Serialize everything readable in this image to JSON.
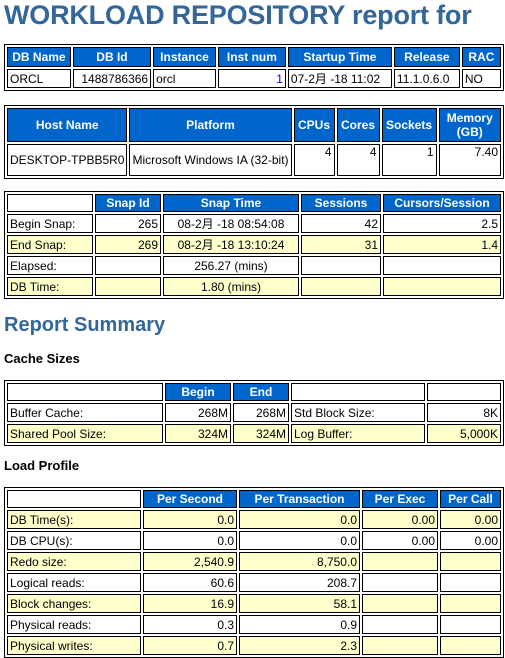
{
  "page_title": "WORKLOAD REPOSITORY report for",
  "db_info": {
    "headers": [
      "DB Name",
      "DB Id",
      "Instance",
      "Inst num",
      "Startup Time",
      "Release",
      "RAC"
    ],
    "row": [
      "ORCL",
      "1488786366",
      "orcl",
      "1",
      "07-2月 -18 11:02",
      "11.1.0.6.0",
      "NO"
    ]
  },
  "host_info": {
    "headers": [
      "Host Name",
      "Platform",
      "CPUs",
      "Cores",
      "Sockets",
      "Memory (GB)"
    ],
    "row": [
      "DESKTOP-TPBB5R0",
      "Microsoft Windows IA (32-bit)",
      "4",
      "4",
      "1",
      "7.40"
    ]
  },
  "snap_info": {
    "headers": [
      "",
      "Snap Id",
      "Snap Time",
      "Sessions",
      "Cursors/Session"
    ],
    "rows": [
      [
        "Begin Snap:",
        "265",
        "08-2月 -18 08:54:08",
        "42",
        "2.5"
      ],
      [
        "End Snap:",
        "269",
        "08-2月 -18 13:10:24",
        "31",
        "1.4"
      ],
      [
        "Elapsed:",
        "",
        "256.27 (mins)",
        "",
        ""
      ],
      [
        "DB Time:",
        "",
        "1.80 (mins)",
        "",
        ""
      ]
    ]
  },
  "report_summary_title": "Report Summary",
  "cache_sizes": {
    "title": "Cache Sizes",
    "headers": [
      "",
      "Begin",
      "End",
      "",
      ""
    ],
    "rows": [
      [
        "Buffer Cache:",
        "268M",
        "268M",
        "Std Block Size:",
        "8K"
      ],
      [
        "Shared Pool Size:",
        "324M",
        "324M",
        "Log Buffer:",
        "5,000K"
      ]
    ]
  },
  "load_profile": {
    "title": "Load Profile",
    "headers": [
      "",
      "Per Second",
      "Per Transaction",
      "Per Exec",
      "Per Call"
    ],
    "rows": [
      [
        "DB Time(s):",
        "0.0",
        "0.0",
        "0.00",
        "0.00"
      ],
      [
        "DB CPU(s):",
        "0.0",
        "0.0",
        "0.00",
        "0.00"
      ],
      [
        "Redo size:",
        "2,540.9",
        "8,750.0",
        "",
        ""
      ],
      [
        "Logical reads:",
        "60.6",
        "208.7",
        "",
        ""
      ],
      [
        "Block changes:",
        "16.9",
        "58.1",
        "",
        ""
      ],
      [
        "Physical reads:",
        "0.3",
        "0.9",
        "",
        ""
      ],
      [
        "Physical writes:",
        "0.7",
        "2.3",
        "",
        ""
      ]
    ]
  }
}
